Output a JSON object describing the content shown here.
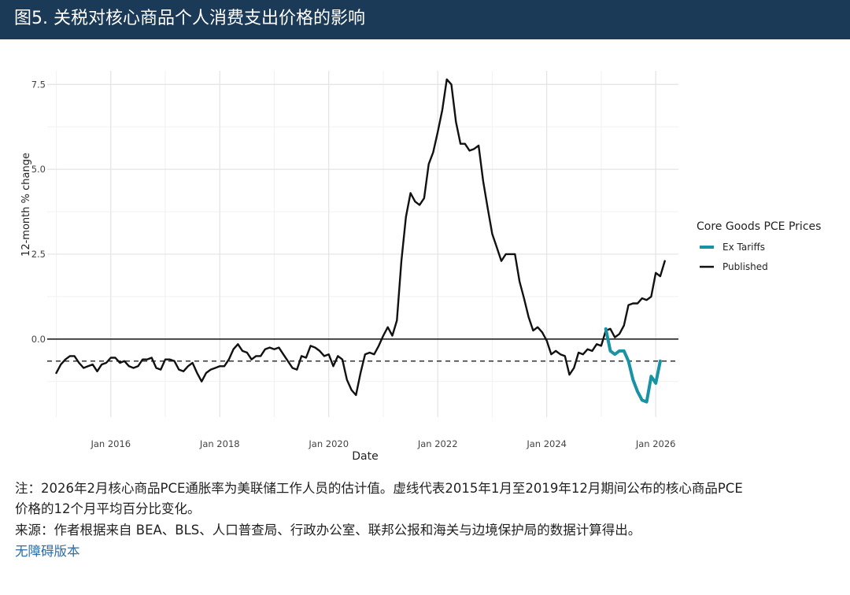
{
  "header": {
    "title": "图5. 关税对核心商品个人消费支出价格的影响"
  },
  "chart_data": {
    "type": "line",
    "title": "",
    "xlabel": "Date",
    "ylabel": "12-month % change",
    "xlim": [
      "2014-11",
      "2026-06"
    ],
    "ylim": [
      -2.3,
      7.9
    ],
    "x_ticks": [
      "Jan 2016",
      "Jan 2018",
      "Jan 2020",
      "Jan 2022",
      "Jan 2024",
      "Jan 2026"
    ],
    "y_ticks": [
      "0.0",
      "2.5",
      "5.0",
      "7.5"
    ],
    "y_tick_values": [
      0.0,
      2.5,
      5.0,
      7.5
    ],
    "grid": true,
    "legend_position": "right",
    "legend_title": "Core Goods PCE Prices",
    "zero_line": 0.0,
    "reference_line": {
      "y": -0.65,
      "style": "dashed"
    },
    "series": [
      {
        "name": "Published",
        "color": "#111111",
        "start": "2015-01",
        "values": [
          -1.0,
          -0.75,
          -0.6,
          -0.5,
          -0.5,
          -0.7,
          -0.85,
          -0.8,
          -0.75,
          -0.95,
          -0.75,
          -0.7,
          -0.55,
          -0.55,
          -0.7,
          -0.65,
          -0.8,
          -0.85,
          -0.8,
          -0.6,
          -0.6,
          -0.55,
          -0.85,
          -0.9,
          -0.6,
          -0.6,
          -0.65,
          -0.9,
          -0.95,
          -0.8,
          -0.7,
          -1.0,
          -1.25,
          -1.0,
          -0.9,
          -0.85,
          -0.8,
          -0.8,
          -0.6,
          -0.3,
          -0.15,
          -0.35,
          -0.4,
          -0.6,
          -0.5,
          -0.5,
          -0.3,
          -0.25,
          -0.3,
          -0.25,
          -0.45,
          -0.65,
          -0.85,
          -0.9,
          -0.5,
          -0.55,
          -0.2,
          -0.25,
          -0.35,
          -0.5,
          -0.45,
          -0.8,
          -0.5,
          -0.6,
          -1.2,
          -1.5,
          -1.65,
          -1.0,
          -0.45,
          -0.4,
          -0.45,
          -0.2,
          0.1,
          0.35,
          0.1,
          0.55,
          2.3,
          3.6,
          4.3,
          4.05,
          3.95,
          4.15,
          5.15,
          5.5,
          6.1,
          6.75,
          7.65,
          7.5,
          6.4,
          5.75,
          5.75,
          5.55,
          5.6,
          5.7,
          4.65,
          3.85,
          3.1,
          2.7,
          2.3,
          2.5,
          2.5,
          2.5,
          1.7,
          1.2,
          0.65,
          0.25,
          0.35,
          0.2,
          -0.05,
          -0.45,
          -0.35,
          -0.45,
          -0.5,
          -1.05,
          -0.85,
          -0.4,
          -0.45,
          -0.3,
          -0.35,
          -0.15,
          -0.2,
          0.25,
          0.3,
          0.05,
          0.15,
          0.4,
          1.0,
          1.05,
          1.05,
          1.2,
          1.15,
          1.25,
          1.95,
          1.85,
          2.3
        ]
      },
      {
        "name": "Ex Tariffs",
        "color": "#1793a3",
        "start": "2025-02",
        "values": [
          0.3,
          -0.35,
          -0.45,
          -0.35,
          -0.35,
          -0.65,
          -1.2,
          -1.55,
          -1.8,
          -1.85,
          -1.1,
          -1.3,
          -0.65
        ]
      }
    ]
  },
  "notes": {
    "line1": "注：2026年2月核心商品PCE通胀率为美联储工作人员的估计值。虚线代表2015年1月至2019年12月期间公布的核心商品PCE",
    "line2": "价格的12个月平均百分比变化。",
    "source": "来源：作者根据来自 BEA、BLS、人口普查局、行政办公室、联邦公报和海关与边境保护局的数据计算得出。",
    "accessible_link": "无障碍版本"
  }
}
